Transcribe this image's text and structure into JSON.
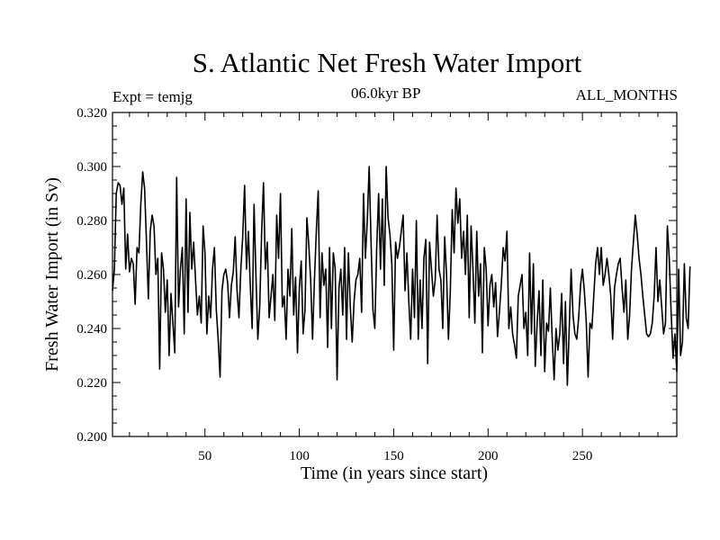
{
  "chart_data": {
    "type": "line",
    "title": "S. Atlantic Net Fresh Water Import",
    "expt_label": "Expt = temjg",
    "subtitle": "06.0kyr BP",
    "period_label": "ALL_MONTHS",
    "xlabel": "Time (in years since start)",
    "ylabel": "Fresh Water Import (in Sv)",
    "xlim": [
      1,
      300
    ],
    "ylim": [
      0.2,
      0.32
    ],
    "x_ticks": [
      50,
      100,
      150,
      200,
      250
    ],
    "x_tick_labels": [
      "50",
      "100",
      "150",
      "200",
      "250"
    ],
    "y_ticks": [
      0.2,
      0.22,
      0.24,
      0.26,
      0.28,
      0.3,
      0.32
    ],
    "y_tick_labels": [
      "0.200",
      "0.220",
      "0.240",
      "0.260",
      "0.280",
      "0.300",
      "0.320"
    ],
    "series": [
      {
        "name": "Net Fresh Water Import",
        "x_start": 1,
        "x_step": 1,
        "values": [
          0.254,
          0.262,
          0.29,
          0.294,
          0.293,
          0.286,
          0.292,
          0.262,
          0.275,
          0.261,
          0.266,
          0.264,
          0.249,
          0.27,
          0.268,
          0.286,
          0.298,
          0.292,
          0.272,
          0.251,
          0.276,
          0.282,
          0.278,
          0.26,
          0.266,
          0.225,
          0.268,
          0.262,
          0.246,
          0.258,
          0.23,
          0.253,
          0.242,
          0.231,
          0.296,
          0.248,
          0.262,
          0.27,
          0.238,
          0.288,
          0.246,
          0.283,
          0.262,
          0.272,
          0.258,
          0.245,
          0.252,
          0.242,
          0.278,
          0.268,
          0.238,
          0.252,
          0.244,
          0.262,
          0.27,
          0.247,
          0.236,
          0.222,
          0.254,
          0.26,
          0.262,
          0.257,
          0.244,
          0.256,
          0.261,
          0.274,
          0.254,
          0.244,
          0.262,
          0.274,
          0.293,
          0.262,
          0.276,
          0.256,
          0.24,
          0.286,
          0.26,
          0.236,
          0.248,
          0.275,
          0.294,
          0.262,
          0.272,
          0.244,
          0.252,
          0.26,
          0.243,
          0.282,
          0.266,
          0.29,
          0.248,
          0.252,
          0.236,
          0.262,
          0.252,
          0.277,
          0.245,
          0.259,
          0.231,
          0.255,
          0.265,
          0.238,
          0.247,
          0.281,
          0.271,
          0.258,
          0.236,
          0.258,
          0.276,
          0.291,
          0.244,
          0.268,
          0.256,
          0.262,
          0.233,
          0.27,
          0.24,
          0.268,
          0.262,
          0.221,
          0.255,
          0.262,
          0.245,
          0.27,
          0.236,
          0.268,
          0.248,
          0.235,
          0.25,
          0.258,
          0.26,
          0.266,
          0.246,
          0.29,
          0.266,
          0.28,
          0.3,
          0.272,
          0.247,
          0.24,
          0.27,
          0.29,
          0.262,
          0.288,
          0.256,
          0.3,
          0.281,
          0.275,
          0.264,
          0.232,
          0.272,
          0.266,
          0.27,
          0.276,
          0.282,
          0.254,
          0.268,
          0.25,
          0.236,
          0.262,
          0.244,
          0.28,
          0.236,
          0.258,
          0.24,
          0.266,
          0.273,
          0.227,
          0.272,
          0.262,
          0.252,
          0.258,
          0.282,
          0.262,
          0.258,
          0.24,
          0.274,
          0.26,
          0.236,
          0.254,
          0.284,
          0.268,
          0.292,
          0.279,
          0.288,
          0.266,
          0.276,
          0.26,
          0.282,
          0.244,
          0.278,
          0.262,
          0.242,
          0.276,
          0.252,
          0.264,
          0.231,
          0.27,
          0.262,
          0.241,
          0.256,
          0.26,
          0.248,
          0.257,
          0.237,
          0.246,
          0.256,
          0.27,
          0.265,
          0.276,
          0.24,
          0.248,
          0.238,
          0.234,
          0.229,
          0.252,
          0.256,
          0.26,
          0.24,
          0.246,
          0.23,
          0.268,
          0.238,
          0.264,
          0.226,
          0.242,
          0.254,
          0.23,
          0.258,
          0.224,
          0.242,
          0.239,
          0.255,
          0.236,
          0.221,
          0.24,
          0.232,
          0.238,
          0.253,
          0.227,
          0.25,
          0.219,
          0.24,
          0.262,
          0.245,
          0.238,
          0.236,
          0.244,
          0.256,
          0.262,
          0.254,
          0.243,
          0.222,
          0.242,
          0.24,
          0.252,
          0.264,
          0.27,
          0.26,
          0.27,
          0.256,
          0.26,
          0.266,
          0.26,
          0.252,
          0.236,
          0.255,
          0.26,
          0.264,
          0.266,
          0.255,
          0.246,
          0.258,
          0.236,
          0.245,
          0.262,
          0.272,
          0.282,
          0.275,
          0.266,
          0.26,
          0.252,
          0.245,
          0.238,
          0.237,
          0.238,
          0.242,
          0.252,
          0.27,
          0.25,
          0.258,
          0.248,
          0.238,
          0.242,
          0.278,
          0.266,
          0.246,
          0.229,
          0.238,
          0.224,
          0.262,
          0.23,
          0.235,
          0.264,
          0.244,
          0.24,
          0.263
        ]
      }
    ]
  }
}
